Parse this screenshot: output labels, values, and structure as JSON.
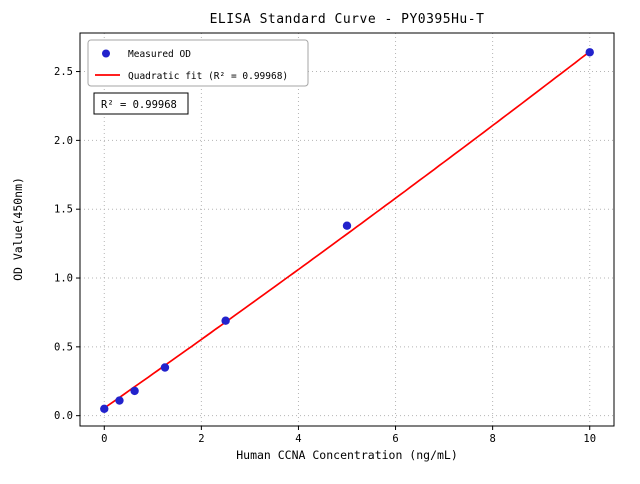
{
  "chart_data": {
    "type": "scatter",
    "title": "ELISA Standard Curve - PY0395Hu-T",
    "xlabel": "Human CCNA Concentration (ng/mL)",
    "ylabel": "OD Value(450nm)",
    "xlim": [
      -0.5,
      10.5
    ],
    "ylim": [
      -0.075,
      2.78
    ],
    "grid": true,
    "legend_position": "upper-left",
    "annotation": "R² = 0.99968",
    "xticks": [
      {
        "value": 0,
        "label": "0"
      },
      {
        "value": 2,
        "label": "2"
      },
      {
        "value": 4,
        "label": "4"
      },
      {
        "value": 6,
        "label": "6"
      },
      {
        "value": 8,
        "label": "8"
      },
      {
        "value": 10,
        "label": "10"
      }
    ],
    "yticks": [
      {
        "value": 0.0,
        "label": "0.0"
      },
      {
        "value": 0.5,
        "label": "0.5"
      },
      {
        "value": 1.0,
        "label": "1.0"
      },
      {
        "value": 1.5,
        "label": "1.5"
      },
      {
        "value": 2.0,
        "label": "2.0"
      },
      {
        "value": 2.5,
        "label": "2.5"
      }
    ],
    "series": [
      {
        "name": "Measured OD",
        "kind": "scatter",
        "marker": "circle",
        "color": "#2222cc",
        "x": [
          0,
          0.313,
          0.625,
          1.25,
          2.5,
          5,
          10
        ],
        "y": [
          0.05,
          0.11,
          0.18,
          0.35,
          0.69,
          1.38,
          2.64
        ]
      },
      {
        "name": "Quadratic fit (R² = 0.99968)",
        "kind": "line",
        "color": "#ff0000",
        "fit": {
          "intercept": 0.055,
          "linear": 0.247,
          "quadratic": 0.0012
        },
        "x_range": [
          0,
          10
        ]
      }
    ],
    "colors": {
      "axis": "#000000",
      "grid": "#b5b5b5",
      "background": "#ffffff"
    }
  }
}
